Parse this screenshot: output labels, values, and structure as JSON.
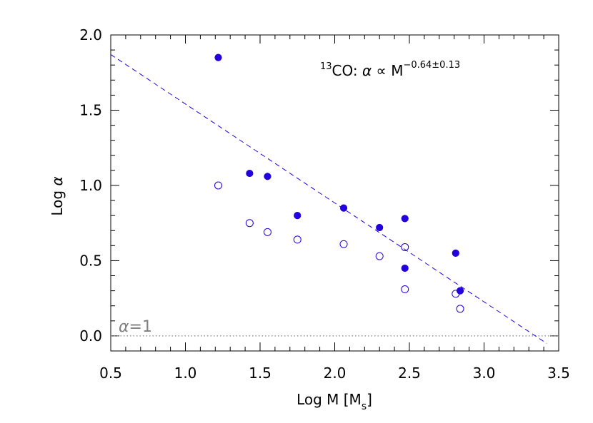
{
  "chart_data": {
    "type": "scatter",
    "xlabel": "Log M [M",
    "xlabel_subscript": "s",
    "xlabel_suffix": "]",
    "ylabel": "Log ",
    "ylabel_symbol": "α",
    "xlim": [
      0.5,
      3.5
    ],
    "ylim": [
      -0.1,
      2.0
    ],
    "x_ticks": [
      "0.5",
      "1.0",
      "1.5",
      "2.0",
      "2.5",
      "3.0",
      "3.5"
    ],
    "y_ticks": [
      "0.0",
      "0.5",
      "1.0",
      "1.5",
      "2.0"
    ],
    "series": [
      {
        "marker": "filled-circle",
        "color": "#2200dd",
        "points": [
          [
            1.22,
            1.85
          ],
          [
            1.43,
            1.08
          ],
          [
            1.55,
            1.06
          ],
          [
            1.75,
            0.8
          ],
          [
            2.06,
            0.85
          ],
          [
            2.3,
            0.72
          ],
          [
            2.47,
            0.78
          ],
          [
            2.47,
            0.45
          ],
          [
            2.81,
            0.55
          ],
          [
            2.84,
            0.3
          ]
        ]
      },
      {
        "marker": "open-circle",
        "color": "#2200dd",
        "points": [
          [
            1.22,
            1.0
          ],
          [
            1.43,
            0.75
          ],
          [
            1.55,
            0.69
          ],
          [
            1.75,
            0.64
          ],
          [
            2.06,
            0.61
          ],
          [
            2.3,
            0.53
          ],
          [
            2.47,
            0.59
          ],
          [
            2.47,
            0.31
          ],
          [
            2.81,
            0.28
          ],
          [
            2.84,
            0.18
          ]
        ]
      }
    ],
    "fit_line": {
      "style": "dashed",
      "color": "#2200dd",
      "from": [
        0.5,
        1.87
      ],
      "to": [
        3.42,
        -0.05
      ]
    },
    "reference_line": {
      "style": "dotted",
      "color": "#808080",
      "y": 0.0,
      "label_symbol": "α",
      "label_rest": "=1"
    },
    "annotation": {
      "superscript_pre": "13",
      "text_a": "CO: ",
      "symbol": "α",
      "text_b": " ∝ M",
      "exponent": "−0.64±0.13"
    }
  }
}
